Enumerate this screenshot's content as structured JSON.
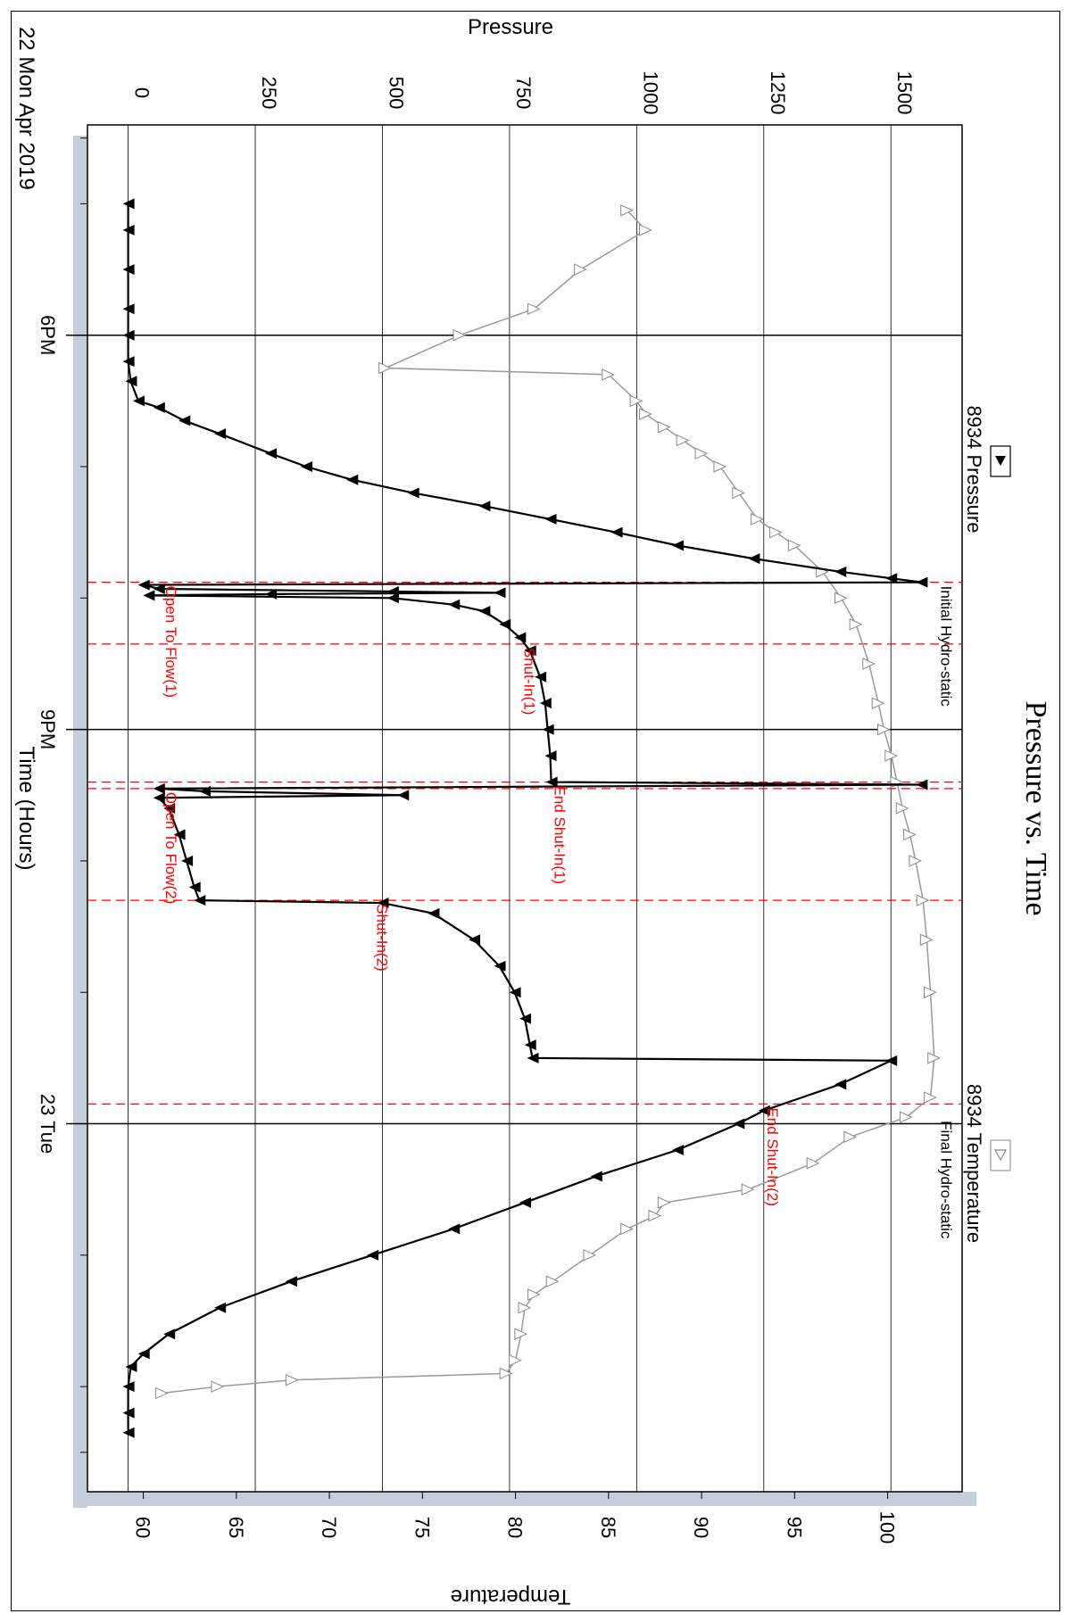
{
  "chart_data": {
    "type": "line",
    "orientation": "rotated-90-clockwise",
    "title": "Pressure vs. Time",
    "xlabel": "Time (Hours)",
    "ylabel_left": "Pressure",
    "ylabel_right": "Temperature",
    "date_label": "22 Mon Apr 2019",
    "x_unit": "hours after 22 Apr 2019 00:00",
    "xlim": [
      16.4,
      26.8
    ],
    "x_ticks": [
      {
        "x": 18,
        "label": "6PM"
      },
      {
        "x": 21,
        "label": "9PM"
      },
      {
        "x": 24,
        "label": "23 Tue"
      }
    ],
    "x_minor_ticks": [
      16.5,
      17,
      19,
      20,
      22,
      23,
      25,
      26,
      26.5
    ],
    "ylim_pressure": [
      -80,
      1640
    ],
    "pressure_ticks": [
      0,
      250,
      500,
      750,
      1000,
      1250,
      1500
    ],
    "ylim_temperature": [
      57,
      104
    ],
    "temperature_ticks": [
      60,
      65,
      70,
      75,
      80,
      85,
      90,
      95,
      100
    ],
    "grid": true,
    "legend": [
      {
        "name": "8934 Pressure",
        "marker": "filled-triangle",
        "color": "#000000"
      },
      {
        "name": "8934 Temperature",
        "marker": "open-triangle",
        "color": "#999999"
      }
    ],
    "legend_placement": "right",
    "series": [
      {
        "name": "8934 Pressure",
        "color": "#000000",
        "points": [
          [
            17.0,
            0
          ],
          [
            17.2,
            0
          ],
          [
            17.5,
            0
          ],
          [
            17.8,
            0
          ],
          [
            18.0,
            0
          ],
          [
            18.2,
            0
          ],
          [
            18.35,
            5
          ],
          [
            18.5,
            20
          ],
          [
            18.55,
            60
          ],
          [
            18.65,
            110
          ],
          [
            18.75,
            180
          ],
          [
            18.9,
            280
          ],
          [
            19.0,
            350
          ],
          [
            19.1,
            440
          ],
          [
            19.2,
            560
          ],
          [
            19.3,
            700
          ],
          [
            19.4,
            830
          ],
          [
            19.5,
            960
          ],
          [
            19.6,
            1080
          ],
          [
            19.7,
            1230
          ],
          [
            19.8,
            1400
          ],
          [
            19.85,
            1500
          ],
          [
            19.88,
            1560
          ],
          [
            19.9,
            30
          ],
          [
            19.93,
            60
          ],
          [
            19.95,
            520
          ],
          [
            19.96,
            730
          ],
          [
            19.97,
            280
          ],
          [
            19.98,
            40
          ],
          [
            20.0,
            520
          ],
          [
            20.05,
            640
          ],
          [
            20.1,
            700
          ],
          [
            20.2,
            740
          ],
          [
            20.3,
            770
          ],
          [
            20.4,
            790
          ],
          [
            20.6,
            810
          ],
          [
            20.8,
            820
          ],
          [
            21.0,
            825
          ],
          [
            21.2,
            830
          ],
          [
            21.4,
            832
          ],
          [
            21.42,
            1560
          ],
          [
            21.45,
            60
          ],
          [
            21.47,
            150
          ],
          [
            21.5,
            540
          ],
          [
            21.52,
            60
          ],
          [
            21.6,
            80
          ],
          [
            21.8,
            100
          ],
          [
            22.0,
            115
          ],
          [
            22.2,
            130
          ],
          [
            22.3,
            140
          ],
          [
            22.32,
            500
          ],
          [
            22.4,
            600
          ],
          [
            22.6,
            680
          ],
          [
            22.8,
            730
          ],
          [
            23.0,
            760
          ],
          [
            23.2,
            780
          ],
          [
            23.4,
            790
          ],
          [
            23.5,
            795
          ],
          [
            23.52,
            1500
          ],
          [
            23.7,
            1400
          ],
          [
            23.9,
            1250
          ],
          [
            24.0,
            1200
          ],
          [
            24.2,
            1080
          ],
          [
            24.4,
            920
          ],
          [
            24.6,
            780
          ],
          [
            24.8,
            640
          ],
          [
            25.0,
            480
          ],
          [
            25.2,
            320
          ],
          [
            25.4,
            180
          ],
          [
            25.6,
            80
          ],
          [
            25.75,
            30
          ],
          [
            25.85,
            5
          ],
          [
            26.0,
            0
          ],
          [
            26.2,
            0
          ],
          [
            26.35,
            0
          ]
        ]
      },
      {
        "name": "8934 Temperature",
        "color": "#999999",
        "points": [
          [
            17.05,
            86
          ],
          [
            17.2,
            87
          ],
          [
            17.5,
            83.5
          ],
          [
            17.8,
            81
          ],
          [
            18.0,
            77
          ],
          [
            18.25,
            73
          ],
          [
            18.3,
            85
          ],
          [
            18.5,
            86.5
          ],
          [
            18.6,
            87
          ],
          [
            18.7,
            88
          ],
          [
            18.8,
            89
          ],
          [
            18.9,
            90
          ],
          [
            19.0,
            91
          ],
          [
            19.2,
            92
          ],
          [
            19.4,
            93
          ],
          [
            19.5,
            94
          ],
          [
            19.6,
            95
          ],
          [
            19.8,
            96.5
          ],
          [
            20.0,
            97.5
          ],
          [
            20.2,
            98.3
          ],
          [
            20.5,
            99
          ],
          [
            20.8,
            99.5
          ],
          [
            21.0,
            99.8
          ],
          [
            21.2,
            100.2
          ],
          [
            21.4,
            100.5
          ],
          [
            21.6,
            100.8
          ],
          [
            21.8,
            101.2
          ],
          [
            22.0,
            101.5
          ],
          [
            22.3,
            101.9
          ],
          [
            22.6,
            102.1
          ],
          [
            23.0,
            102.3
          ],
          [
            23.5,
            102.5
          ],
          [
            23.8,
            102.3
          ],
          [
            23.95,
            101
          ],
          [
            24.1,
            98
          ],
          [
            24.3,
            96
          ],
          [
            24.5,
            92.5
          ],
          [
            24.6,
            88
          ],
          [
            24.7,
            87.5
          ],
          [
            24.8,
            86
          ],
          [
            25.0,
            84
          ],
          [
            25.2,
            82
          ],
          [
            25.3,
            81
          ],
          [
            25.4,
            80.5
          ],
          [
            25.6,
            80.3
          ],
          [
            25.8,
            80
          ],
          [
            25.9,
            79.5
          ],
          [
            25.95,
            68
          ],
          [
            26.0,
            64
          ],
          [
            26.05,
            61
          ]
        ]
      }
    ],
    "annotations": [
      {
        "x": 19.88,
        "label": "Initial Hydro-static",
        "color": "#000000",
        "line": false
      },
      {
        "x": 19.88,
        "label": "Open To Flow(1)",
        "color": "#ff0000",
        "line": true
      },
      {
        "x": 20.35,
        "label": "Shut-In(1)",
        "color": "#ff0000",
        "line": true
      },
      {
        "x": 21.4,
        "label": "End Shut-In(1)",
        "color": "#ff0000",
        "line": true
      },
      {
        "x": 21.45,
        "label": "Open To Flow(2)",
        "color": "#ff0000",
        "line": true
      },
      {
        "x": 22.3,
        "label": "Shut-In(2)",
        "color": "#ff0000",
        "line": true
      },
      {
        "x": 23.85,
        "label": "End Shut-In(2)",
        "color": "#ff0000",
        "line": true
      },
      {
        "x": 23.95,
        "label": "Final Hydro-static",
        "color": "#000000",
        "line": false
      }
    ]
  }
}
